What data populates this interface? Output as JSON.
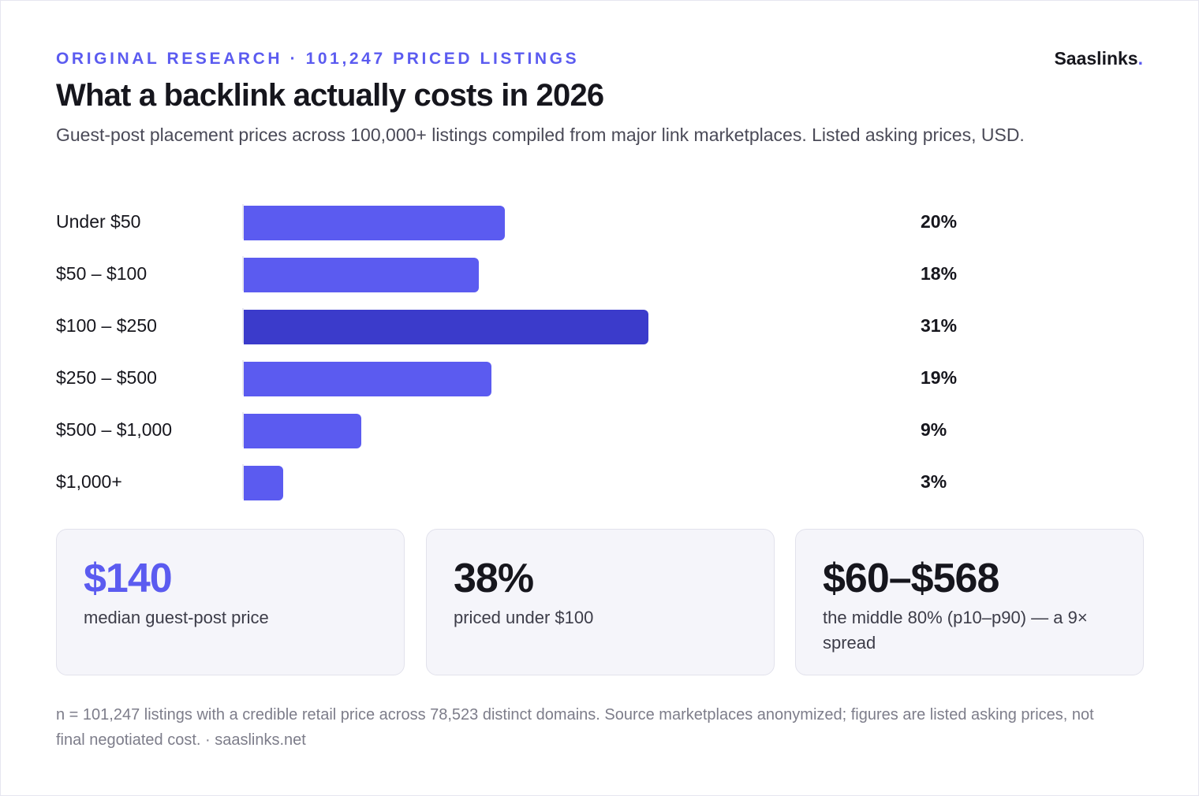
{
  "header": {
    "eyebrow": "ORIGINAL RESEARCH · 101,247 PRICED LISTINGS",
    "brand_name": "Saaslinks",
    "brand_dot": ".",
    "title": "What a backlink actually costs in 2026",
    "subtitle": "Guest-post placement prices across 100,000+ listings compiled from major link marketplaces. Listed asking prices, USD."
  },
  "colors": {
    "accent": "#5b5bf0",
    "peak": "#3b3bcb"
  },
  "chart_data": {
    "type": "bar",
    "orientation": "horizontal",
    "categories": [
      "Under $50",
      "$50 – $100",
      "$100 – $250",
      "$250 – $500",
      "$500 – $1,000",
      "$1,000+"
    ],
    "values": [
      20,
      18,
      31,
      19,
      9,
      3
    ],
    "value_labels": [
      "20%",
      "18%",
      "31%",
      "19%",
      "9%",
      "3%"
    ],
    "highlight_index": 2,
    "xlim": [
      0,
      52
    ],
    "grid": false,
    "legend": "none"
  },
  "stats": [
    {
      "value": "$140",
      "label": "median guest-post price"
    },
    {
      "value": "38%",
      "label": "priced under $100"
    },
    {
      "value": "$60–$568",
      "label": "the middle 80% (p10–p90) — a 9× spread"
    }
  ],
  "footnote": "n = 101,247 listings with a credible retail price across 78,523 distinct domains. Source marketplaces anonymized; figures are listed asking prices, not final negotiated cost. · saaslinks.net"
}
